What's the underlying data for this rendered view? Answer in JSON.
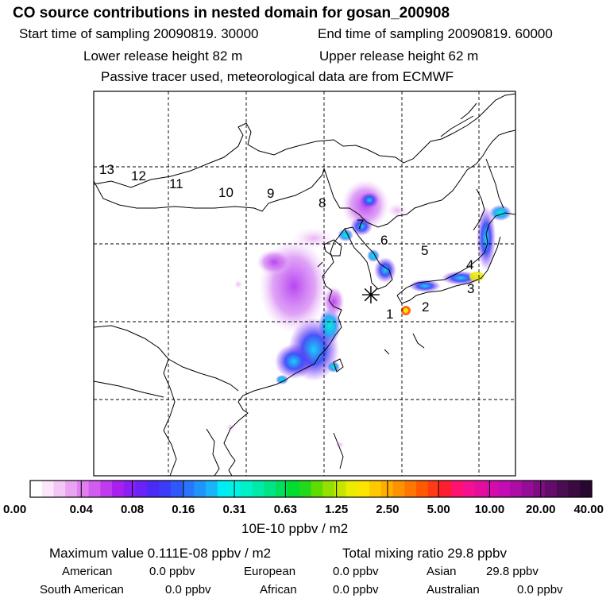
{
  "header": {
    "title": "CO  source contributions in nested domain for gosan_200908",
    "start_time": "Start time of sampling 20090819. 30000",
    "end_time": "End time of sampling 20090819. 60000",
    "lower_height": "Lower release height   82 m",
    "upper_height": "Upper release height   62 m",
    "tracer_note": "Passive tracer used, meteorological data are from ECMWF"
  },
  "map": {
    "receptor_marker": "✳",
    "region_labels": [
      "1",
      "2",
      "3",
      "4",
      "5",
      "6",
      "7",
      "8",
      "9",
      "10",
      "11",
      "12",
      "13"
    ]
  },
  "colorbar": {
    "tick_labels": [
      "0.00",
      "0.04",
      "0.08",
      "0.16",
      "0.31",
      "0.63",
      "1.25",
      "2.50",
      "5.00",
      "10.00",
      "20.00",
      "40.00"
    ],
    "unit": "10E-10 ppbv / m2",
    "colors": [
      "#ffffff",
      "#fbe6fb",
      "#f3c6f5",
      "#eaa3f0",
      "#e07ef0",
      "#d25cf0",
      "#c03aee",
      "#a91ff0",
      "#8a1ef5",
      "#6a22f7",
      "#4b2af8",
      "#3a3cf9",
      "#2f58fa",
      "#2876fb",
      "#1f95fb",
      "#1ab4fb",
      "#00ecf5",
      "#00f2e0",
      "#00f0c8",
      "#00eaa8",
      "#00e486",
      "#00e05a",
      "#00dc30",
      "#22d81a",
      "#5cdc00",
      "#94e000",
      "#c6e600",
      "#ecec00",
      "#ffe400",
      "#ffc800",
      "#ffae00",
      "#ff9200",
      "#ff7600",
      "#ff5a00",
      "#ff3a14",
      "#ff1e30",
      "#ff1270",
      "#f4108e",
      "#e40e9c",
      "#d40cac",
      "#c40cb4",
      "#ae0ca6",
      "#960c96",
      "#7e0c82",
      "#640c6a",
      "#4c0c54",
      "#3a0a40",
      "#280830"
    ]
  },
  "footer": {
    "maximum": "Maximum value  0.111E-08 ppbv / m2",
    "total": "Total mixing ratio       29.8 ppbv",
    "american": "American",
    "american_val": "0.0 ppbv",
    "european": "European",
    "european_val": "0.0 ppbv",
    "asian": "Asian",
    "asian_val": "29.8 ppbv",
    "south_american": "South American",
    "south_american_val": "0.0 ppbv",
    "african": "African",
    "african_val": "0.0 ppbv",
    "australian": "Australian",
    "australian_val": "0.0 ppbv"
  }
}
